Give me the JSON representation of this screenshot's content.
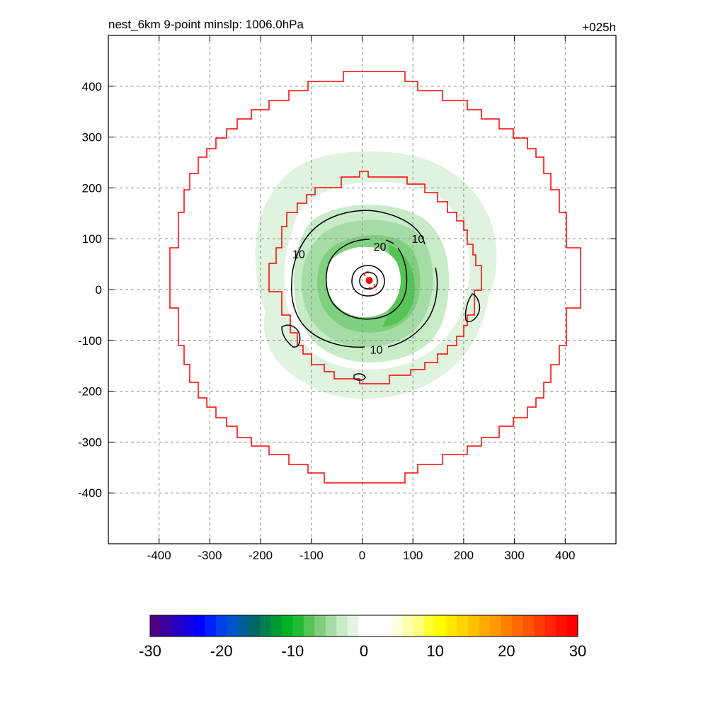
{
  "chart_data": {
    "type": "contour",
    "title": "nest_6km  9-point minslp: 1006.0hPa",
    "time_label": "+025h",
    "xlim": [
      -500,
      500
    ],
    "ylim": [
      -500,
      500
    ],
    "x_ticks": [
      -400,
      -300,
      -200,
      -100,
      0,
      100,
      200,
      300,
      400
    ],
    "y_ticks": [
      -400,
      -300,
      -200,
      -100,
      0,
      100,
      200,
      300,
      400
    ],
    "x_tick_labels": [
      "-400",
      "-300",
      "-200",
      "-100",
      "0",
      "100",
      "200",
      "300",
      "400"
    ],
    "y_tick_labels": [
      "-400",
      "-300",
      "-200",
      "-100",
      "0",
      "100",
      "200",
      "300",
      "400"
    ],
    "grid": true,
    "contour_labels": [
      {
        "text": "10",
        "x": -125,
        "y": 70
      },
      {
        "text": "20",
        "x": 35,
        "y": 85
      },
      {
        "text": "10",
        "x": 110,
        "y": 100
      },
      {
        "text": "10",
        "x": 28,
        "y": -118
      }
    ],
    "center": {
      "x": 14,
      "y": 18,
      "color": "#ff0000"
    },
    "colorbar": {
      "min": -30,
      "max": 30,
      "tick_values": [
        -30,
        -20,
        -10,
        0,
        10,
        20,
        30
      ],
      "tick_labels": [
        "-30",
        "-20",
        "-10",
        "0",
        "10",
        "20",
        "30"
      ],
      "colors": [
        "#4b0082",
        "#3a00a0",
        "#2800c0",
        "#1500e0",
        "#0000ff",
        "#0020ff",
        "#0040e8",
        "#0055cc",
        "#005f99",
        "#006666",
        "#00804d",
        "#009933",
        "#00b322",
        "#22bb33",
        "#55c455",
        "#7fcf7f",
        "#a5dca5",
        "#c8ebc8",
        "#e2f5e2",
        "#ffffff",
        "#ffffff",
        "#ffffff",
        "#ffffe0",
        "#ffffb0",
        "#ffff80",
        "#ffff30",
        "#ffff00",
        "#ffe600",
        "#ffd400",
        "#ffc000",
        "#ffaa00",
        "#ff9900",
        "#ff8000",
        "#ff6a00",
        "#ff5500",
        "#ff3c00",
        "#ff2500",
        "#ff1000",
        "#ff0000"
      ]
    },
    "colors": {
      "outer_box": "#ff0000",
      "inner_box": "#ff0000",
      "contour": "#000000",
      "grid": "#888888"
    }
  }
}
